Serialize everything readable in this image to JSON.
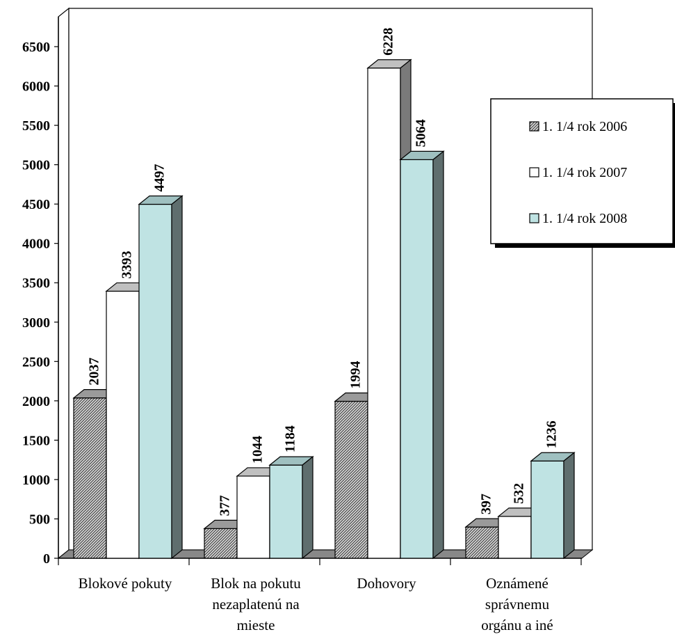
{
  "chart_data": {
    "type": "bar",
    "categories": [
      [
        "Blokové pokuty"
      ],
      [
        "Blok na pokutu",
        "nezaplatenú na",
        "mieste"
      ],
      [
        "Dohovory"
      ],
      [
        "Oznámené",
        "správnemu",
        "orgánu a iné"
      ]
    ],
    "series": [
      {
        "name": "1. 1/4 rok 2006",
        "values": [
          2037,
          377,
          1994,
          397
        ],
        "color": "#b4b4b4",
        "pattern": "hatch"
      },
      {
        "name": "1. 1/4 rok 2007",
        "values": [
          3393,
          1044,
          6228,
          532
        ],
        "color": "#ffffff",
        "pattern": "none"
      },
      {
        "name": "1. 1/4 rok 2008",
        "values": [
          4497,
          1184,
          5064,
          1236
        ],
        "color": "#bfe3e3",
        "pattern": "none"
      }
    ],
    "yticks": [
      0,
      500,
      1000,
      1500,
      2000,
      2500,
      3000,
      3500,
      4000,
      4500,
      5000,
      5500,
      6000,
      6500
    ],
    "ylim": [
      0,
      6500
    ],
    "title": "",
    "xlabel": "",
    "ylabel": "",
    "legend_position": "right",
    "grid": false,
    "style": "3d"
  }
}
